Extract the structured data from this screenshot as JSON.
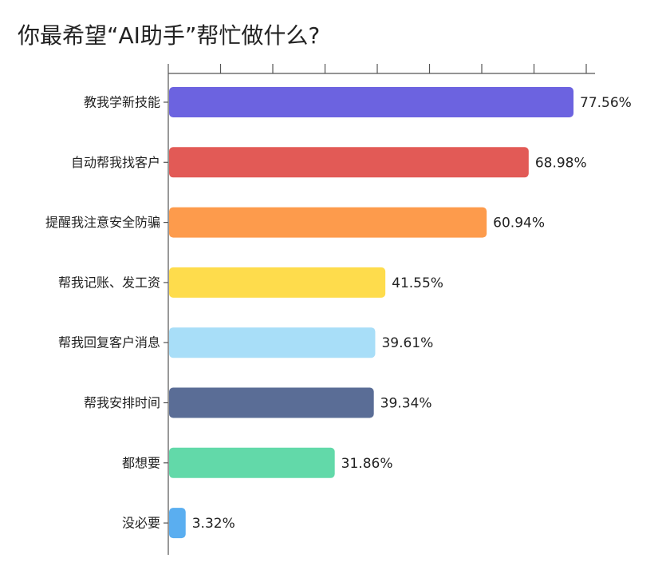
{
  "chart_data": {
    "type": "hbar",
    "title": "你最希望“AI助手”帮忙做什么?",
    "categories": [
      "教我学新技能",
      "自动帮我找客户",
      "提醒我注意安全防骗",
      "帮我记账、发工资",
      "帮我回复客户消息",
      "帮我安排时间",
      "都想要",
      "没必要"
    ],
    "values": [
      77.56,
      68.98,
      60.94,
      41.55,
      39.61,
      39.34,
      31.86,
      3.32
    ],
    "value_labels": [
      "77.56%",
      "68.98%",
      "60.94%",
      "41.55%",
      "39.61%",
      "39.34%",
      "31.86%",
      "3.32%"
    ],
    "colors": [
      "#6c63e0",
      "#e25a56",
      "#fd9b4c",
      "#fedc4c",
      "#a8def8",
      "#5a6d96",
      "#62d9a9",
      "#5aaef0"
    ],
    "xlim": [
      0,
      80
    ],
    "xticks": [
      0,
      10,
      20,
      30,
      40,
      50,
      60,
      70,
      80
    ]
  }
}
